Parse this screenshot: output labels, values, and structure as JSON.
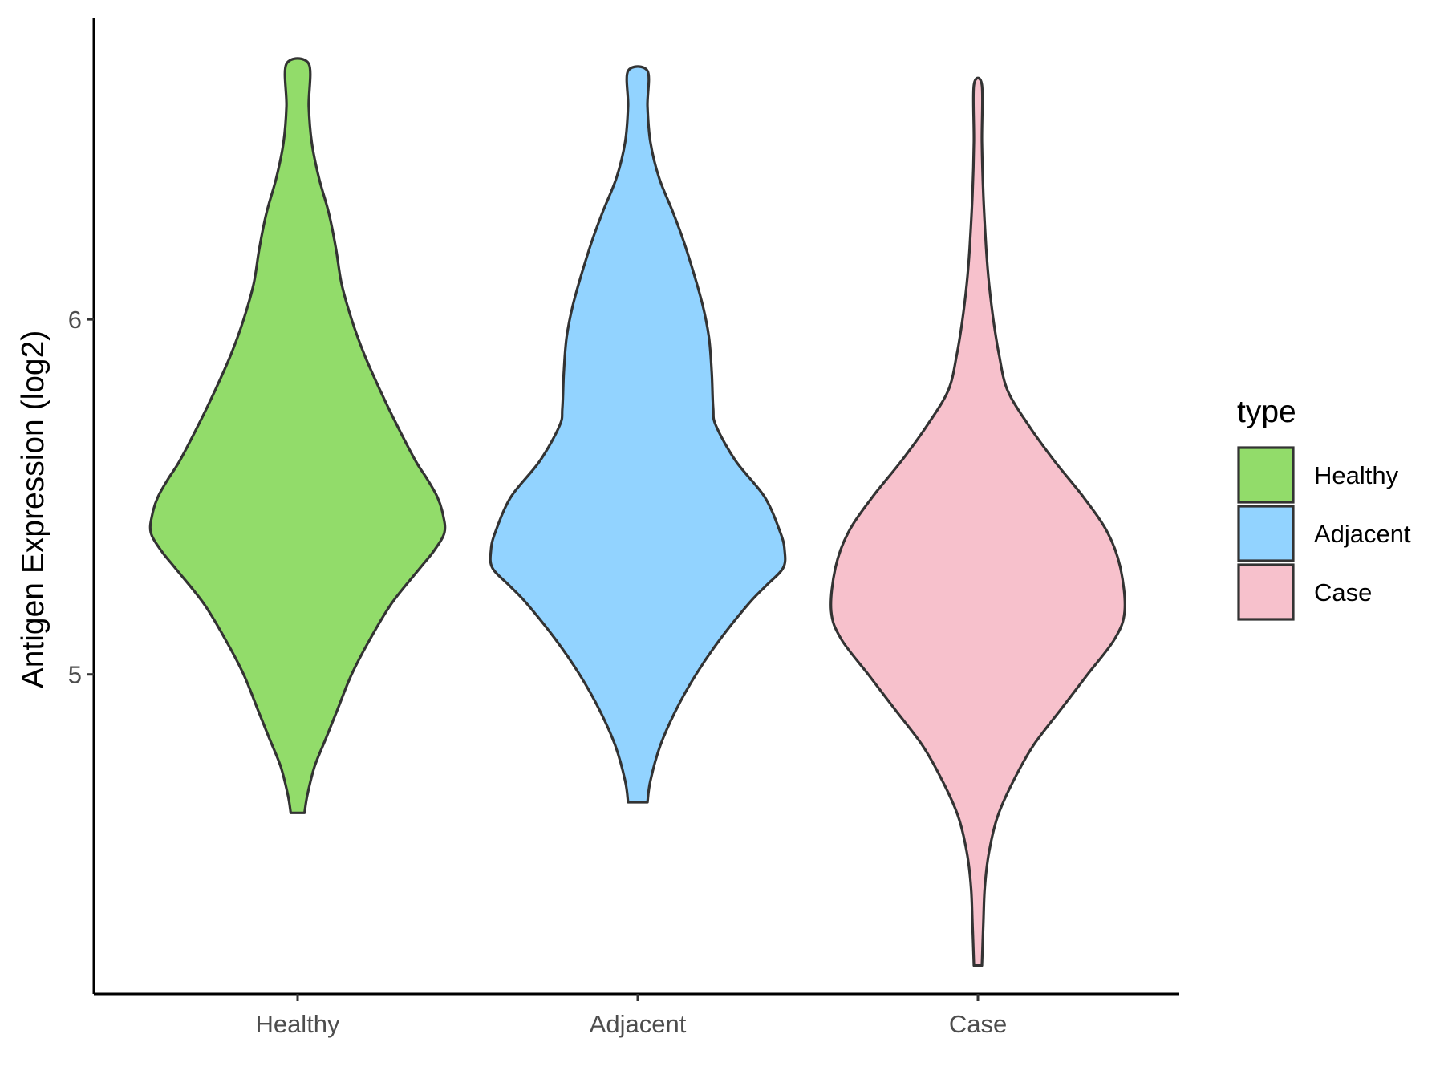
{
  "chart_data": {
    "type": "violin",
    "title": "",
    "xlabel": "",
    "ylabel": "Antigen Expression (log2)",
    "ylim": [
      4.1,
      6.85
    ],
    "yticks": [
      {
        "value": 5,
        "label": "5"
      },
      {
        "value": 6,
        "label": "6"
      }
    ],
    "categories": [
      "Healthy",
      "Adjacent",
      "Case"
    ],
    "series": [
      {
        "name": "Healthy",
        "color": "#92dc6a",
        "min": 4.61,
        "max": 6.72,
        "profile": [
          [
            4.61,
            0.02
          ],
          [
            4.66,
            0.04
          ],
          [
            4.74,
            0.09
          ],
          [
            4.82,
            0.17
          ],
          [
            4.9,
            0.25
          ],
          [
            5.0,
            0.35
          ],
          [
            5.1,
            0.48
          ],
          [
            5.2,
            0.63
          ],
          [
            5.3,
            0.83
          ],
          [
            5.35,
            0.93
          ],
          [
            5.4,
            1.0
          ],
          [
            5.45,
            0.99
          ],
          [
            5.5,
            0.95
          ],
          [
            5.55,
            0.88
          ],
          [
            5.6,
            0.8
          ],
          [
            5.7,
            0.67
          ],
          [
            5.8,
            0.55
          ],
          [
            5.9,
            0.44
          ],
          [
            6.0,
            0.35
          ],
          [
            6.1,
            0.28
          ],
          [
            6.2,
            0.24
          ],
          [
            6.3,
            0.19
          ],
          [
            6.4,
            0.12
          ],
          [
            6.5,
            0.07
          ],
          [
            6.6,
            0.05
          ],
          [
            6.72,
            0.05
          ]
        ]
      },
      {
        "name": "Adjacent",
        "color": "#92d3ff",
        "min": 4.64,
        "max": 6.7,
        "profile": [
          [
            4.64,
            0.04
          ],
          [
            4.7,
            0.06
          ],
          [
            4.8,
            0.13
          ],
          [
            4.9,
            0.24
          ],
          [
            5.0,
            0.38
          ],
          [
            5.1,
            0.55
          ],
          [
            5.2,
            0.75
          ],
          [
            5.25,
            0.87
          ],
          [
            5.3,
            0.99
          ],
          [
            5.35,
            1.0
          ],
          [
            5.4,
            0.97
          ],
          [
            5.5,
            0.86
          ],
          [
            5.6,
            0.66
          ],
          [
            5.7,
            0.52
          ],
          [
            5.75,
            0.5
          ],
          [
            5.85,
            0.49
          ],
          [
            5.95,
            0.47
          ],
          [
            6.05,
            0.42
          ],
          [
            6.2,
            0.31
          ],
          [
            6.3,
            0.22
          ],
          [
            6.4,
            0.12
          ],
          [
            6.5,
            0.06
          ],
          [
            6.6,
            0.04
          ],
          [
            6.7,
            0.04
          ]
        ]
      },
      {
        "name": "Case",
        "color": "#f7c1cc",
        "min": 4.18,
        "max": 6.66,
        "profile": [
          [
            4.18,
            0.0
          ],
          [
            4.3,
            0.01
          ],
          [
            4.4,
            0.02
          ],
          [
            4.5,
            0.05
          ],
          [
            4.6,
            0.11
          ],
          [
            4.7,
            0.22
          ],
          [
            4.8,
            0.36
          ],
          [
            4.9,
            0.55
          ],
          [
            5.0,
            0.74
          ],
          [
            5.1,
            0.93
          ],
          [
            5.18,
            1.0
          ],
          [
            5.3,
            0.97
          ],
          [
            5.4,
            0.88
          ],
          [
            5.5,
            0.71
          ],
          [
            5.6,
            0.51
          ],
          [
            5.7,
            0.33
          ],
          [
            5.8,
            0.18
          ],
          [
            5.9,
            0.12
          ],
          [
            6.0,
            0.08
          ],
          [
            6.1,
            0.05
          ],
          [
            6.2,
            0.03
          ],
          [
            6.35,
            0.01
          ],
          [
            6.5,
            0.0
          ],
          [
            6.66,
            0.0
          ]
        ]
      }
    ],
    "legend": {
      "title": "type",
      "placement": "right",
      "entries": [
        {
          "label": "Healthy",
          "color": "#92dc6a"
        },
        {
          "label": "Adjacent",
          "color": "#92d3ff"
        },
        {
          "label": "Case",
          "color": "#f7c1cc"
        }
      ]
    },
    "outline_color": "#333333",
    "axis_color": "#000000",
    "grid": false
  }
}
